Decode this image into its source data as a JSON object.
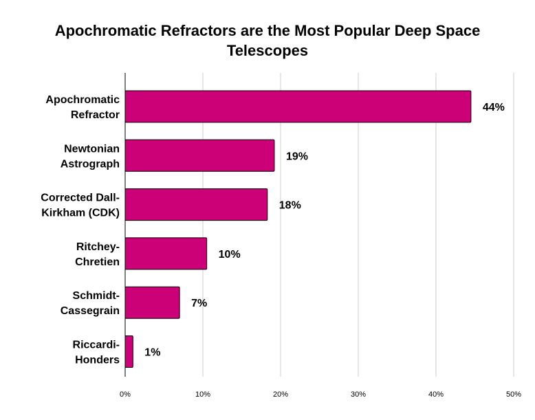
{
  "chart_data": {
    "type": "bar",
    "orientation": "horizontal",
    "title_lines": [
      "Apochromatic Refractors are the Most Popular Deep Space",
      "Telescopes"
    ],
    "categories": [
      [
        "Apochromatic",
        "Refractor"
      ],
      [
        "Newtonian",
        "Astrograph"
      ],
      [
        "Corrected Dall-",
        "Kirkham (CDK)"
      ],
      [
        "Ritchey-",
        "Chretien"
      ],
      [
        "Schmidt-",
        "Cassegrain"
      ],
      [
        "Riccardi-",
        "Honders"
      ]
    ],
    "values": [
      44.5,
      19.2,
      18.3,
      10.5,
      7.0,
      1.0
    ],
    "data_labels": [
      "44%",
      "19%",
      "18%",
      "10%",
      "7%",
      "1%"
    ],
    "xlim": [
      0,
      50
    ],
    "xticks": [
      0,
      10,
      20,
      30,
      40,
      50
    ],
    "xtick_labels": [
      "0%",
      "10%",
      "20%",
      "30%",
      "40%",
      "50%"
    ],
    "grid": "vertical",
    "legend": "none",
    "bar_color": "#cc0077",
    "bar_edge_color": "#000000"
  }
}
